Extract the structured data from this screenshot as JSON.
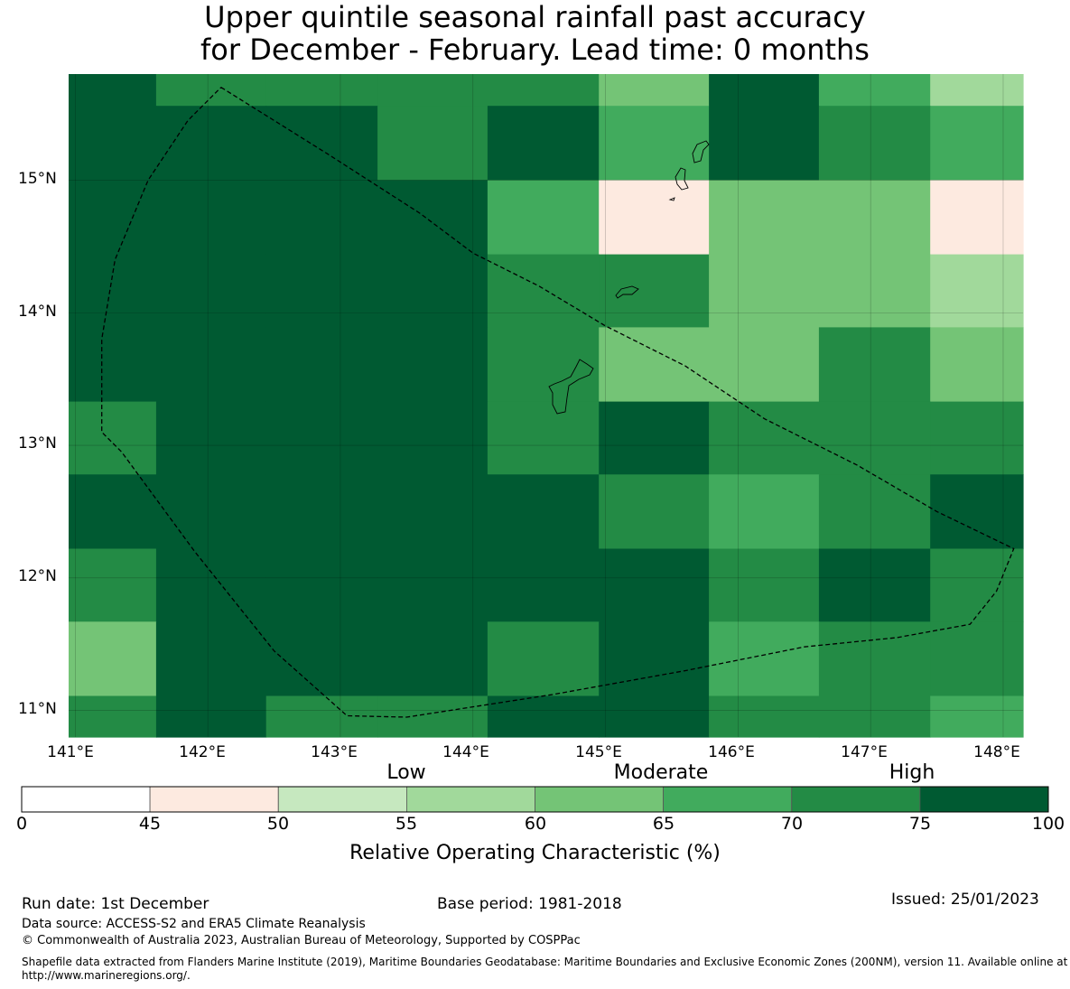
{
  "title": {
    "line1": "Upper quintile seasonal rainfall past accuracy",
    "line2": "for December - February. Lead time: 0 months"
  },
  "map": {
    "lat_labels": [
      "15°N",
      "14°N",
      "13°N",
      "12°N",
      "11°N"
    ],
    "lon_labels": [
      "141°E",
      "142°E",
      "143°E",
      "144°E",
      "145°E",
      "146°E",
      "147°E",
      "148°E"
    ],
    "lon_values": [
      141,
      142,
      143,
      144,
      145,
      146,
      147,
      148
    ],
    "lat_values": [
      15,
      14,
      13,
      12,
      11
    ],
    "extent": {
      "lon_min": 140.95,
      "lon_max": 148.15,
      "lat_min": 10.8,
      "lat_max": 15.8
    },
    "grid_lon_edges": [
      140.95,
      141.61,
      142.44,
      143.28,
      144.11,
      144.95,
      145.78,
      146.61,
      147.45,
      148.15
    ],
    "grid_lat_edges": [
      15.8,
      15.56,
      15.0,
      14.44,
      13.89,
      13.33,
      12.78,
      12.22,
      11.67,
      11.11,
      10.8
    ],
    "grid_categories": [
      [
        7,
        6,
        6,
        6,
        6,
        4,
        7,
        5,
        3
      ],
      [
        7,
        7,
        7,
        6,
        7,
        5,
        7,
        6,
        5
      ],
      [
        7,
        7,
        7,
        7,
        5,
        1,
        4,
        4,
        1
      ],
      [
        7,
        7,
        7,
        7,
        6,
        6,
        4,
        4,
        3
      ],
      [
        7,
        7,
        7,
        7,
        6,
        4,
        4,
        6,
        4
      ],
      [
        6,
        7,
        7,
        7,
        6,
        7,
        6,
        6,
        6
      ],
      [
        7,
        7,
        7,
        7,
        7,
        6,
        5,
        6,
        7
      ],
      [
        6,
        7,
        7,
        7,
        7,
        7,
        6,
        7,
        6
      ],
      [
        4,
        7,
        7,
        7,
        6,
        7,
        5,
        6,
        6
      ],
      [
        6,
        7,
        6,
        6,
        7,
        7,
        6,
        6,
        5
      ]
    ],
    "eez_boundary": [
      [
        142.1,
        15.7
      ],
      [
        142.9,
        15.2
      ],
      [
        143.6,
        14.75
      ],
      [
        144.0,
        14.45
      ],
      [
        144.5,
        14.2
      ],
      [
        145.0,
        13.9
      ],
      [
        145.6,
        13.6
      ],
      [
        146.2,
        13.2
      ],
      [
        146.9,
        12.85
      ],
      [
        147.5,
        12.5
      ],
      [
        148.08,
        12.22
      ],
      [
        147.95,
        11.9
      ],
      [
        147.75,
        11.65
      ],
      [
        147.2,
        11.55
      ],
      [
        146.5,
        11.48
      ],
      [
        145.6,
        11.3
      ],
      [
        144.6,
        11.12
      ],
      [
        143.5,
        10.95
      ],
      [
        143.05,
        10.96
      ],
      [
        142.5,
        11.45
      ],
      [
        141.9,
        12.2
      ],
      [
        141.35,
        12.95
      ],
      [
        141.2,
        13.1
      ],
      [
        141.2,
        13.8
      ],
      [
        141.3,
        14.4
      ],
      [
        141.55,
        15.0
      ],
      [
        141.85,
        15.45
      ],
      [
        142.1,
        15.7
      ]
    ]
  },
  "colorbar": {
    "ticks": [
      "0",
      "45",
      "50",
      "55",
      "60",
      "65",
      "70",
      "75",
      "100"
    ],
    "colors": [
      "#ffffff",
      "#fdeae0",
      "#c6e8bf",
      "#a1d99b",
      "#74c476",
      "#41ab5d",
      "#238b45",
      "#005a32"
    ],
    "category_labels": {
      "low": "Low",
      "moderate": "Moderate",
      "high": "High"
    },
    "title": "Relative Operating Characteristic (%)"
  },
  "footer": {
    "run_date": "Run date: 1st December",
    "base_period": "Base period: 1981-2018",
    "issued": "Issued: 25/01/2023",
    "data_source": "Data source: ACCESS-S2 and ERA5 Climate Reanalysis",
    "copyright": "© Commonwealth of Australia 2023, Australian Bureau of Meteorology, Supported by COSPPac",
    "shapefile_note": "Shapefile data extracted from Flanders Marine Institute (2019), Maritime Boundaries Geodatabase: Maritime Boundaries and Exclusive Economic Zones (200NM), version 11. Available online at http://www.marineregions.org/."
  }
}
